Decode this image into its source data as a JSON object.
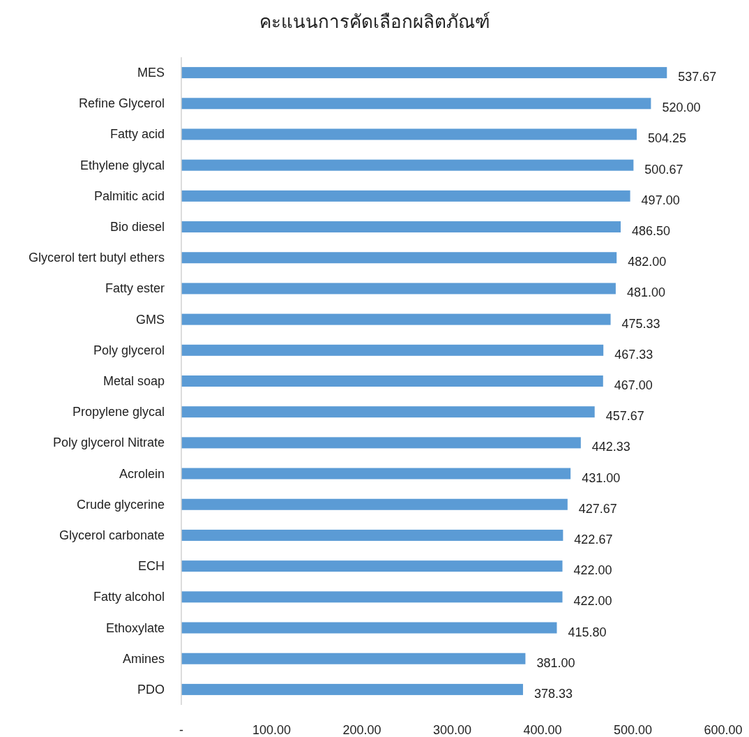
{
  "chart_data": {
    "type": "bar",
    "orientation": "horizontal",
    "title": "คะแนนการคัดเลือกผลิตภัณฑ์",
    "categories": [
      "MES",
      "Refine Glycerol",
      "Fatty acid",
      "Ethylene glycal",
      "Palmitic acid",
      "Bio diesel",
      "Glycerol tert butyl ethers",
      "Fatty ester",
      "GMS",
      "Poly glycerol",
      "Metal soap",
      "Propylene glycal",
      "Poly glycerol Nitrate",
      "Acrolein",
      "Crude glycerine",
      "Glycerol carbonate",
      "ECH",
      "Fatty alcohol",
      "Ethoxylate",
      "Amines",
      "PDO"
    ],
    "values": [
      537.67,
      520.0,
      504.25,
      500.67,
      497.0,
      486.5,
      482.0,
      481.0,
      475.33,
      467.33,
      467.0,
      457.67,
      442.33,
      431.0,
      427.67,
      422.67,
      422.0,
      422.0,
      415.8,
      381.0,
      378.33
    ],
    "value_labels": [
      "537.67",
      "520.00",
      "504.25",
      "500.67",
      "497.00",
      "486.50",
      "482.00",
      "481.00",
      "475.33",
      "467.33",
      "467.00",
      "457.67",
      "442.33",
      "431.00",
      "427.67",
      "422.67",
      "422.00",
      "422.00",
      "415.80",
      "381.00",
      "378.33"
    ],
    "color": "#5b9bd5",
    "xlim": [
      0,
      600
    ],
    "xticks": [
      {
        "value": 0,
        "label": "-"
      },
      {
        "value": 100,
        "label": "100.00"
      },
      {
        "value": 200,
        "label": "200.00"
      },
      {
        "value": 300,
        "label": "300.00"
      },
      {
        "value": 400,
        "label": "400.00"
      },
      {
        "value": 500,
        "label": "500.00"
      },
      {
        "value": 600,
        "label": "600.00"
      }
    ],
    "grid": false
  }
}
